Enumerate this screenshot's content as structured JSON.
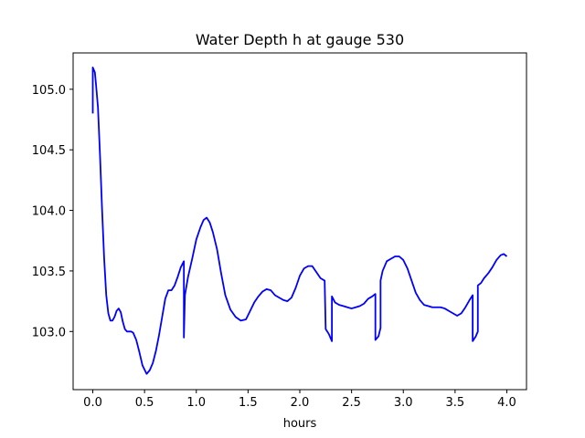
{
  "chart_data": {
    "type": "line",
    "title": "Water Depth h at gauge 530",
    "xlabel": "hours",
    "ylabel": "",
    "xlim": [
      -0.19,
      4.19
    ],
    "ylim": [
      102.52,
      105.3
    ],
    "x_ticks": [
      0.0,
      0.5,
      1.0,
      1.5,
      2.0,
      2.5,
      3.0,
      3.5,
      4.0
    ],
    "x_tick_labels": [
      "0.0",
      "0.5",
      "1.0",
      "1.5",
      "2.0",
      "2.5",
      "3.0",
      "3.5",
      "4.0"
    ],
    "y_ticks": [
      103.0,
      103.5,
      104.0,
      104.5,
      105.0
    ],
    "y_tick_labels": [
      "103.0",
      "103.5",
      "104.0",
      "104.5",
      "105.0"
    ],
    "grid": false,
    "series": [
      {
        "color": "#0000ff",
        "x": [
          0.0,
          0.0,
          0.02,
          0.03,
          0.05,
          0.07,
          0.09,
          0.11,
          0.13,
          0.15,
          0.17,
          0.19,
          0.21,
          0.23,
          0.25,
          0.27,
          0.29,
          0.31,
          0.33,
          0.35,
          0.37,
          0.39,
          0.42,
          0.45,
          0.48,
          0.52,
          0.55,
          0.58,
          0.61,
          0.64,
          0.67,
          0.7,
          0.73,
          0.76,
          0.79,
          0.82,
          0.85,
          0.88,
          0.88,
          0.89,
          0.92,
          0.96,
          1.0,
          1.04,
          1.07,
          1.1,
          1.13,
          1.16,
          1.2,
          1.24,
          1.28,
          1.33,
          1.38,
          1.43,
          1.48,
          1.52,
          1.56,
          1.6,
          1.64,
          1.68,
          1.72,
          1.76,
          1.8,
          1.84,
          1.88,
          1.92,
          1.96,
          2.0,
          2.04,
          2.08,
          2.12,
          2.16,
          2.2,
          2.24,
          2.25,
          2.28,
          2.31,
          2.31,
          2.34,
          2.38,
          2.42,
          2.46,
          2.5,
          2.54,
          2.58,
          2.62,
          2.66,
          2.7,
          2.73,
          2.73,
          2.76,
          2.78,
          2.78,
          2.8,
          2.84,
          2.88,
          2.92,
          2.96,
          3.0,
          3.04,
          3.08,
          3.12,
          3.16,
          3.2,
          3.24,
          3.28,
          3.32,
          3.36,
          3.4,
          3.44,
          3.48,
          3.52,
          3.56,
          3.6,
          3.64,
          3.67,
          3.67,
          3.7,
          3.72,
          3.72,
          3.75,
          3.78,
          3.82,
          3.86,
          3.9,
          3.94,
          3.97,
          4.0
        ],
        "y": [
          104.8,
          105.18,
          105.14,
          105.05,
          104.85,
          104.45,
          104.0,
          103.6,
          103.3,
          103.15,
          103.09,
          103.09,
          103.12,
          103.17,
          103.19,
          103.16,
          103.08,
          103.02,
          103.0,
          103.0,
          103.0,
          102.99,
          102.93,
          102.83,
          102.72,
          102.65,
          102.68,
          102.74,
          102.84,
          102.97,
          103.12,
          103.27,
          103.34,
          103.34,
          103.38,
          103.45,
          103.53,
          103.58,
          102.95,
          103.3,
          103.45,
          103.6,
          103.76,
          103.86,
          103.92,
          103.94,
          103.9,
          103.82,
          103.68,
          103.48,
          103.3,
          103.18,
          103.12,
          103.09,
          103.1,
          103.17,
          103.24,
          103.29,
          103.33,
          103.35,
          103.34,
          103.3,
          103.28,
          103.26,
          103.25,
          103.28,
          103.36,
          103.46,
          103.52,
          103.54,
          103.54,
          103.49,
          103.44,
          103.42,
          103.02,
          102.98,
          102.92,
          103.29,
          103.24,
          103.22,
          103.21,
          103.2,
          103.19,
          103.2,
          103.21,
          103.23,
          103.27,
          103.29,
          103.31,
          102.93,
          102.96,
          103.03,
          103.42,
          103.5,
          103.58,
          103.6,
          103.62,
          103.62,
          103.59,
          103.52,
          103.42,
          103.32,
          103.26,
          103.22,
          103.21,
          103.2,
          103.2,
          103.2,
          103.19,
          103.17,
          103.15,
          103.13,
          103.15,
          103.2,
          103.26,
          103.3,
          102.92,
          102.96,
          103.0,
          103.38,
          103.4,
          103.44,
          103.48,
          103.53,
          103.59,
          103.63,
          103.64,
          103.62
        ]
      }
    ]
  }
}
